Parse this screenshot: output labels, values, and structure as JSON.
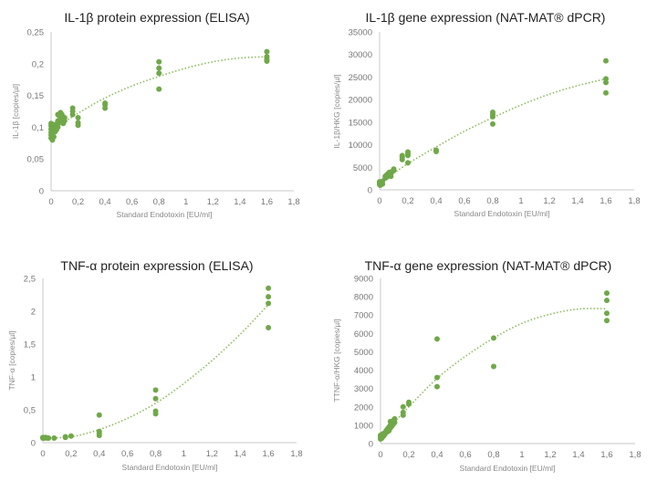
{
  "chart_data": [
    {
      "type": "scatter",
      "title": "IL-1β protein expression (ELISA)",
      "xlabel": "Standard Endotoxin [EU/ml]",
      "ylabel": "IL-1β [copies/µl]",
      "xlim": [
        0,
        1.8
      ],
      "ylim": [
        0,
        0.25
      ],
      "xticks": [
        "0",
        "0,2",
        "0,4",
        "0,6",
        "0,8",
        "1",
        "1,2",
        "1,4",
        "1,6",
        "1,8"
      ],
      "yticks": [
        "0",
        "0,05",
        "0,1",
        "0,15",
        "0,2",
        "0,25"
      ],
      "grid": false,
      "trendline": "polynomial",
      "trend_x": [
        0,
        0.2,
        0.4,
        0.6,
        0.8,
        1.0,
        1.2,
        1.4,
        1.6
      ],
      "trend_y": [
        0.094,
        0.122,
        0.146,
        0.165,
        0.18,
        0.193,
        0.203,
        0.209,
        0.211
      ],
      "points": [
        [
          0,
          0.083
        ],
        [
          0,
          0.088
        ],
        [
          0,
          0.092
        ],
        [
          0,
          0.097
        ],
        [
          0,
          0.102
        ],
        [
          0,
          0.106
        ],
        [
          0.005,
          0.09
        ],
        [
          0.01,
          0.08
        ],
        [
          0.01,
          0.095
        ],
        [
          0.01,
          0.1
        ],
        [
          0.02,
          0.085
        ],
        [
          0.02,
          0.098
        ],
        [
          0.02,
          0.104
        ],
        [
          0.03,
          0.093
        ],
        [
          0.03,
          0.1
        ],
        [
          0.04,
          0.096
        ],
        [
          0.04,
          0.105
        ],
        [
          0.05,
          0.1
        ],
        [
          0.05,
          0.11
        ],
        [
          0.05,
          0.12
        ],
        [
          0.06,
          0.108
        ],
        [
          0.06,
          0.118
        ],
        [
          0.07,
          0.115
        ],
        [
          0.07,
          0.123
        ],
        [
          0.08,
          0.11
        ],
        [
          0.08,
          0.12
        ],
        [
          0.09,
          0.106
        ],
        [
          0.09,
          0.116
        ],
        [
          0.1,
          0.11
        ],
        [
          0.1,
          0.115
        ],
        [
          0.16,
          0.12
        ],
        [
          0.16,
          0.125
        ],
        [
          0.16,
          0.13
        ],
        [
          0.2,
          0.103
        ],
        [
          0.2,
          0.107
        ],
        [
          0.2,
          0.115
        ],
        [
          0.4,
          0.13
        ],
        [
          0.4,
          0.135
        ],
        [
          0.4,
          0.138
        ],
        [
          0.8,
          0.16
        ],
        [
          0.8,
          0.185
        ],
        [
          0.8,
          0.193
        ],
        [
          0.8,
          0.203
        ],
        [
          1.6,
          0.204
        ],
        [
          1.6,
          0.207
        ],
        [
          1.6,
          0.211
        ],
        [
          1.6,
          0.219
        ]
      ]
    },
    {
      "type": "scatter",
      "title": "IL-1β gene expression (NAT-MAT® dPCR)",
      "xlabel": "Standard Endotoxin [EU/ml]",
      "ylabel": "IL-1β/HKG [copies/µl]",
      "xlim": [
        0,
        1.8
      ],
      "ylim": [
        0,
        35000
      ],
      "xticks": [
        "0",
        "0,2",
        "0,4",
        "0,6",
        "0,8",
        "1",
        "1,2",
        "1,4",
        "1,6",
        "1,8"
      ],
      "yticks": [
        "0",
        "5000",
        "10000",
        "15000",
        "20000",
        "25000",
        "30000",
        "35000"
      ],
      "grid": false,
      "trendline": "polynomial",
      "trend_x": [
        0,
        0.2,
        0.4,
        0.6,
        0.8,
        1.0,
        1.2,
        1.4,
        1.6
      ],
      "trend_y": [
        1500,
        5800,
        9500,
        13000,
        16000,
        18800,
        21200,
        23100,
        24600
      ],
      "points": [
        [
          0,
          1200
        ],
        [
          0,
          1500
        ],
        [
          0,
          1800
        ],
        [
          0.005,
          1000
        ],
        [
          0.01,
          1400
        ],
        [
          0.01,
          1700
        ],
        [
          0.02,
          1300
        ],
        [
          0.02,
          1900
        ],
        [
          0.04,
          2600
        ],
        [
          0.04,
          3000
        ],
        [
          0.05,
          2800
        ],
        [
          0.05,
          3300
        ],
        [
          0.06,
          3100
        ],
        [
          0.06,
          3600
        ],
        [
          0.07,
          3400
        ],
        [
          0.07,
          3900
        ],
        [
          0.08,
          3000
        ],
        [
          0.08,
          3700
        ],
        [
          0.09,
          4100
        ],
        [
          0.1,
          4300
        ],
        [
          0.1,
          4600
        ],
        [
          0.16,
          6700
        ],
        [
          0.16,
          7200
        ],
        [
          0.16,
          7600
        ],
        [
          0.2,
          6000
        ],
        [
          0.2,
          7600
        ],
        [
          0.2,
          8000
        ],
        [
          0.2,
          8400
        ],
        [
          0.4,
          8500
        ],
        [
          0.4,
          8800
        ],
        [
          0.8,
          14600
        ],
        [
          0.8,
          16200
        ],
        [
          0.8,
          16700
        ],
        [
          0.8,
          17200
        ],
        [
          1.6,
          21500
        ],
        [
          1.6,
          23800
        ],
        [
          1.6,
          24600
        ],
        [
          1.6,
          28600
        ]
      ]
    },
    {
      "type": "scatter",
      "title": "TNF-α protein expression (ELISA)",
      "xlabel": "Standard Endotoxin [EU/ml]",
      "ylabel": "TNF-α [copies/µl]",
      "xlim": [
        0,
        1.8
      ],
      "ylim": [
        0,
        2.5
      ],
      "xticks": [
        "0",
        "0,2",
        "0,4",
        "0,6",
        "0,8",
        "1",
        "1,2",
        "1,4",
        "1,6",
        "1,8"
      ],
      "yticks": [
        "0",
        "0,5",
        "1",
        "1,5",
        "2",
        "2,5"
      ],
      "grid": false,
      "trendline": "polynomial",
      "trend_x": [
        0,
        0.2,
        0.4,
        0.6,
        0.8,
        1.0,
        1.2,
        1.4,
        1.6
      ],
      "trend_y": [
        0.07,
        0.09,
        0.2,
        0.37,
        0.6,
        0.9,
        1.25,
        1.65,
        2.1
      ],
      "points": [
        [
          0,
          0.07
        ],
        [
          0,
          0.08
        ],
        [
          0.01,
          0.07
        ],
        [
          0.02,
          0.08
        ],
        [
          0.03,
          0.07
        ],
        [
          0.04,
          0.07
        ],
        [
          0.08,
          0.07
        ],
        [
          0.16,
          0.08
        ],
        [
          0.16,
          0.09
        ],
        [
          0.2,
          0.1
        ],
        [
          0.4,
          0.11
        ],
        [
          0.4,
          0.14
        ],
        [
          0.4,
          0.17
        ],
        [
          0.4,
          0.42
        ],
        [
          0.8,
          0.44
        ],
        [
          0.8,
          0.48
        ],
        [
          0.8,
          0.67
        ],
        [
          0.8,
          0.8
        ],
        [
          1.6,
          1.75
        ],
        [
          1.6,
          2.12
        ],
        [
          1.6,
          2.22
        ],
        [
          1.6,
          2.35
        ]
      ]
    },
    {
      "type": "scatter",
      "title": "TNF-α gene expression (NAT-MAT® dPCR)",
      "xlabel": "Standard Endotoxin [EU/ml]",
      "ylabel": "TTNF-α/HKG [copies/µl]",
      "xlim": [
        0,
        1.8
      ],
      "ylim": [
        0,
        9000
      ],
      "xticks": [
        "0",
        "0,2",
        "0,4",
        "0,6",
        "0,8",
        "1",
        "1,2",
        "1,4",
        "1,6",
        "1,8"
      ],
      "yticks": [
        "0",
        "1000",
        "2000",
        "3000",
        "4000",
        "5000",
        "6000",
        "7000",
        "8000",
        "9000"
      ],
      "grid": false,
      "trendline": "polynomial",
      "trend_x": [
        0,
        0.2,
        0.4,
        0.6,
        0.8,
        1.0,
        1.2,
        1.4,
        1.6
      ],
      "trend_y": [
        350,
        2000,
        3550,
        4750,
        5750,
        6550,
        7050,
        7330,
        7350
      ],
      "points": [
        [
          0,
          250
        ],
        [
          0,
          350
        ],
        [
          0,
          450
        ],
        [
          0.01,
          300
        ],
        [
          0.01,
          500
        ],
        [
          0.02,
          400
        ],
        [
          0.02,
          550
        ],
        [
          0.03,
          500
        ],
        [
          0.04,
          600
        ],
        [
          0.04,
          700
        ],
        [
          0.05,
          650
        ],
        [
          0.05,
          800
        ],
        [
          0.06,
          700
        ],
        [
          0.06,
          900
        ],
        [
          0.07,
          850
        ],
        [
          0.07,
          1000
        ],
        [
          0.07,
          1200
        ],
        [
          0.08,
          950
        ],
        [
          0.08,
          1100
        ],
        [
          0.09,
          1050
        ],
        [
          0.09,
          1250
        ],
        [
          0.1,
          1150
        ],
        [
          0.1,
          1350
        ],
        [
          0.16,
          1550
        ],
        [
          0.16,
          1700
        ],
        [
          0.16,
          2000
        ],
        [
          0.2,
          2150
        ],
        [
          0.2,
          2250
        ],
        [
          0.4,
          3100
        ],
        [
          0.4,
          3600
        ],
        [
          0.4,
          5700
        ],
        [
          0.8,
          4200
        ],
        [
          0.8,
          5750
        ],
        [
          1.6,
          6700
        ],
        [
          1.6,
          7100
        ],
        [
          1.6,
          7800
        ],
        [
          1.6,
          8200
        ]
      ]
    }
  ]
}
